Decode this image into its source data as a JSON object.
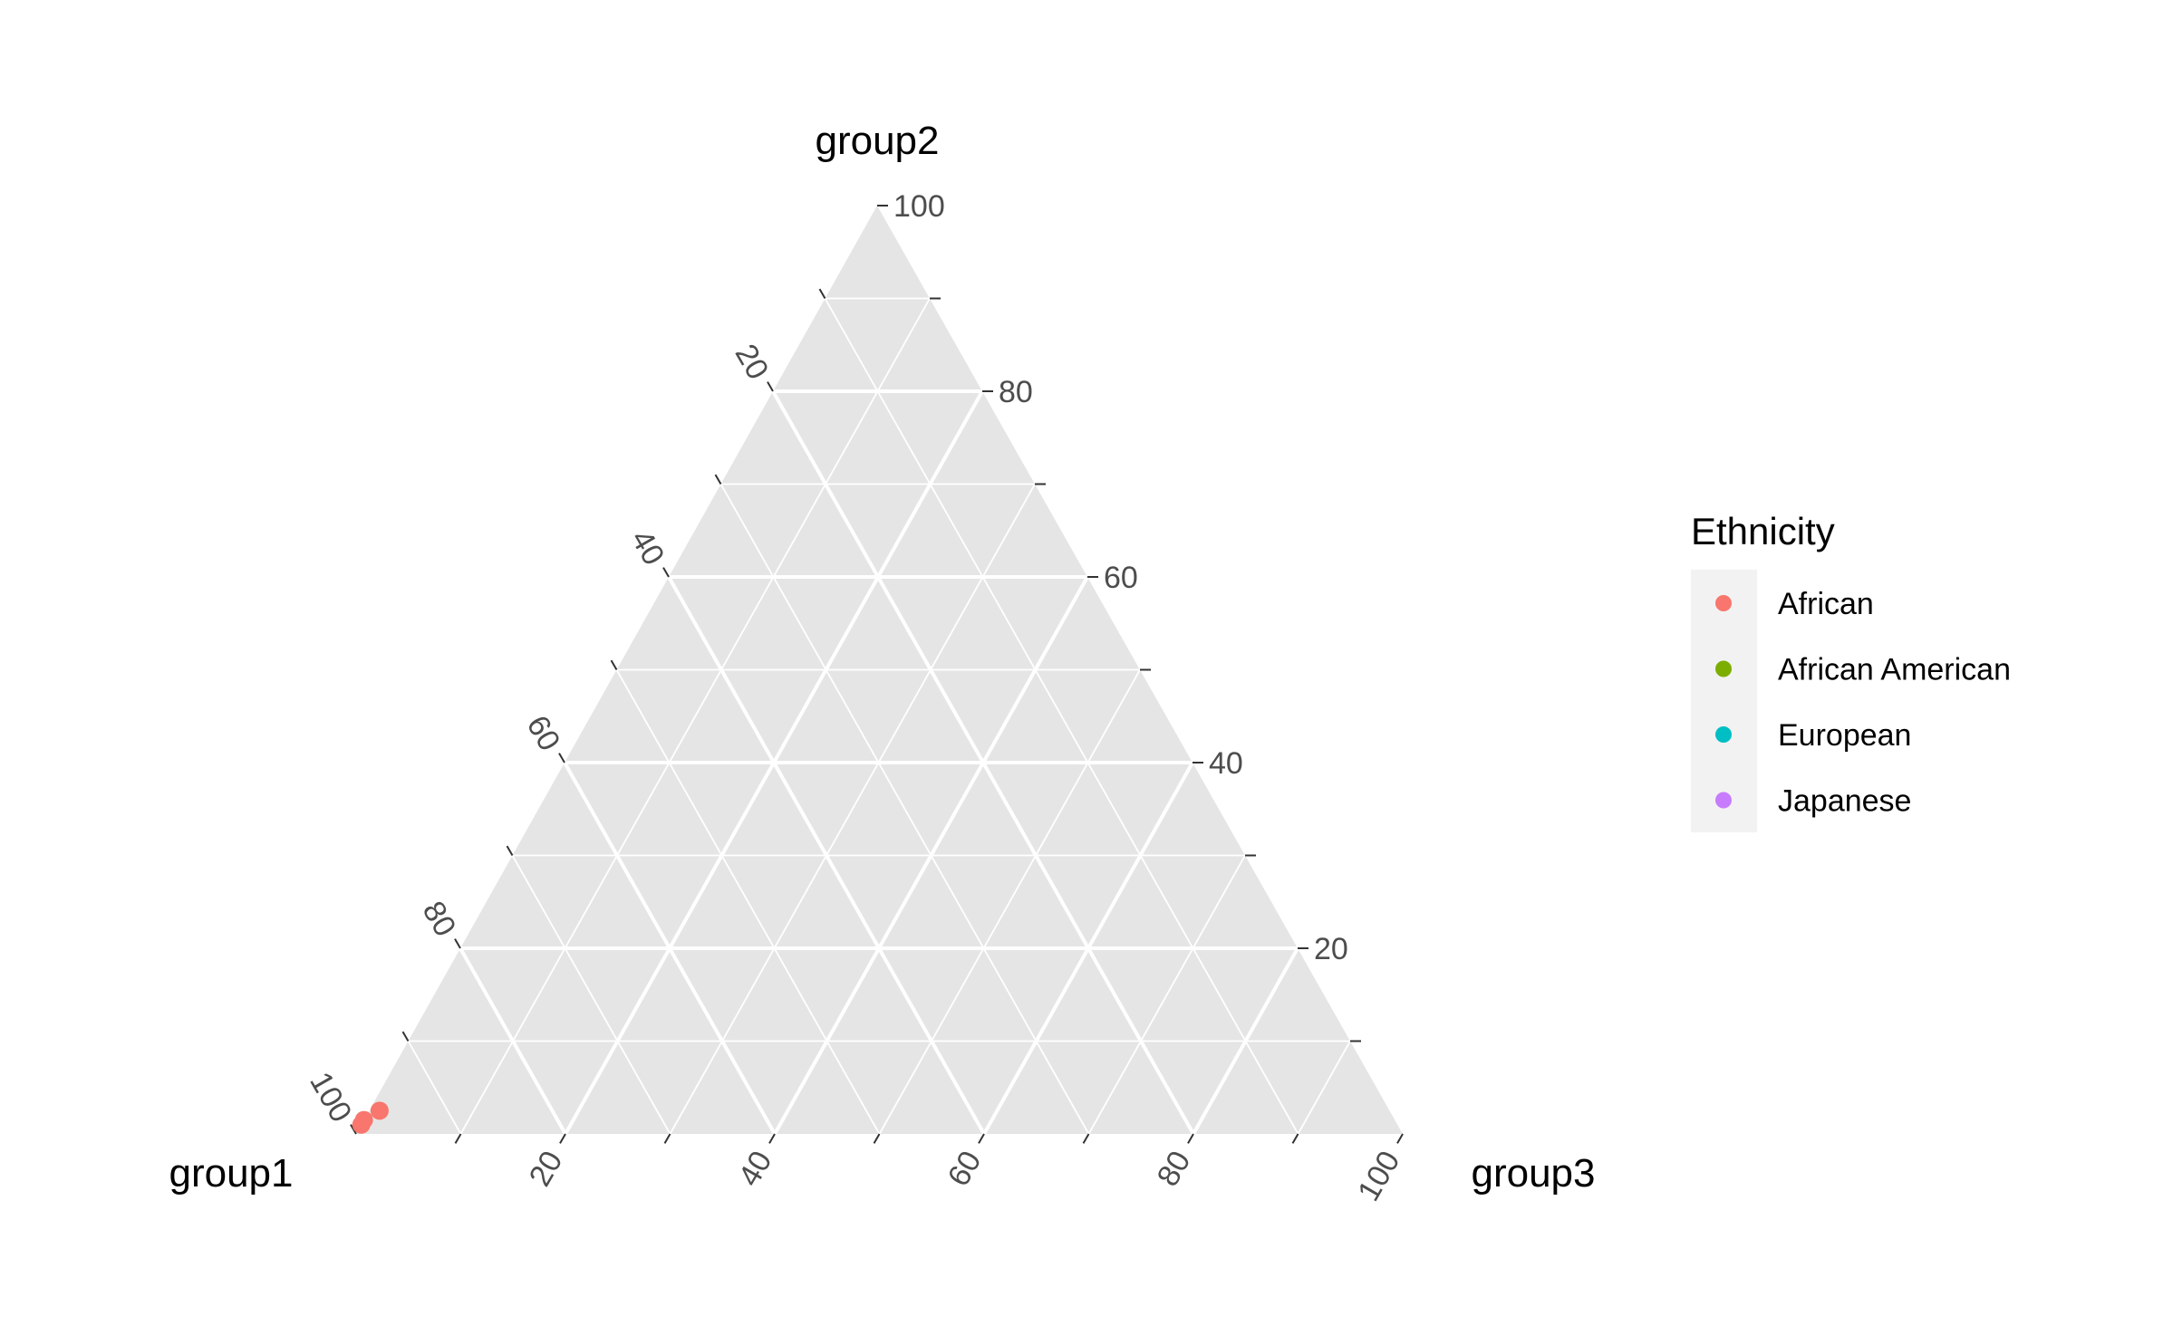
{
  "chart_data": {
    "type": "scatter",
    "subtype": "ternary",
    "axes": {
      "left": "group1",
      "top": "group2",
      "right": "group3"
    },
    "ticks": [
      "20",
      "40",
      "60",
      "80",
      "100"
    ],
    "range": [
      0,
      100
    ],
    "grid": true,
    "legend": {
      "title": "Ethnicity",
      "placement": "right",
      "entries": [
        {
          "label": "African",
          "color": "#F8766D"
        },
        {
          "label": "African American",
          "color": "#7CAE00"
        },
        {
          "label": "European",
          "color": "#00BFC4"
        },
        {
          "label": "Japanese",
          "color": "#C77CFF"
        }
      ]
    },
    "points": [
      {
        "group1": 99.5,
        "group2": 1.0,
        "group3": -0.5,
        "series": "African"
      },
      {
        "group1": 98.5,
        "group2": 1.5,
        "group3": 0.0,
        "series": "African"
      },
      {
        "group1": 96.5,
        "group2": 2.5,
        "group3": 1.0,
        "series": "African"
      }
    ]
  }
}
